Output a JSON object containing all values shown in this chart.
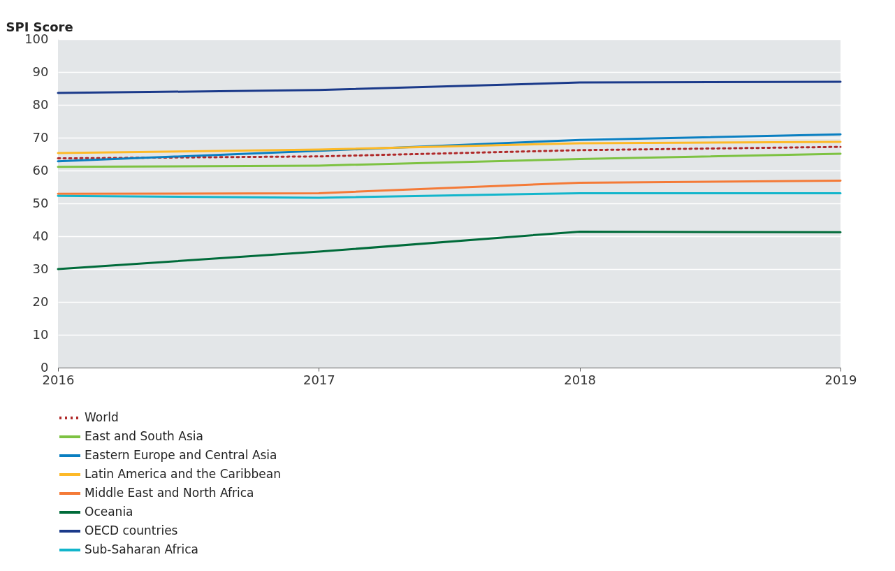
{
  "chart_data": {
    "type": "line",
    "ylabel": "SPI Score",
    "x": [
      2016,
      2017,
      2018,
      2019
    ],
    "xlim": [
      2016,
      2019
    ],
    "xticks": [
      2016,
      2017,
      2018,
      2019
    ],
    "ylim": [
      0,
      100
    ],
    "yticks": [
      0,
      10,
      20,
      30,
      40,
      50,
      60,
      70,
      80,
      90,
      100
    ],
    "grid": "y",
    "legend": "bottom",
    "marker": "none",
    "series": [
      {
        "name": "World",
        "color": "#b02a2a",
        "line_style": "dotted",
        "values": [
          63.7,
          64.3,
          66.2,
          67.2
        ]
      },
      {
        "name": "East and South Asia",
        "color": "#7dc242",
        "values": [
          61.1,
          61.5,
          63.5,
          65.1
        ]
      },
      {
        "name": "Eastern Europe and Central Asia",
        "color": "#0a7fc1",
        "values": [
          62.8,
          66.0,
          69.3,
          71.0
        ]
      },
      {
        "name": "Latin America and the Caribbean",
        "color": "#fdb927",
        "values": [
          65.3,
          66.4,
          68.3,
          68.7
        ]
      },
      {
        "name": "Middle East and North Africa",
        "color": "#f47a37",
        "values": [
          52.9,
          53.1,
          56.3,
          56.9
        ]
      },
      {
        "name": "Oceania",
        "color": "#006b3a",
        "values": [
          30.0,
          35.3,
          41.4,
          41.2
        ]
      },
      {
        "name": "OECD countries",
        "color": "#1b3a8a",
        "values": [
          83.6,
          84.5,
          86.8,
          87.0
        ]
      },
      {
        "name": "Sub-Saharan Africa",
        "color": "#12b5cb",
        "values": [
          52.3,
          51.7,
          53.1,
          53.1
        ]
      }
    ]
  }
}
